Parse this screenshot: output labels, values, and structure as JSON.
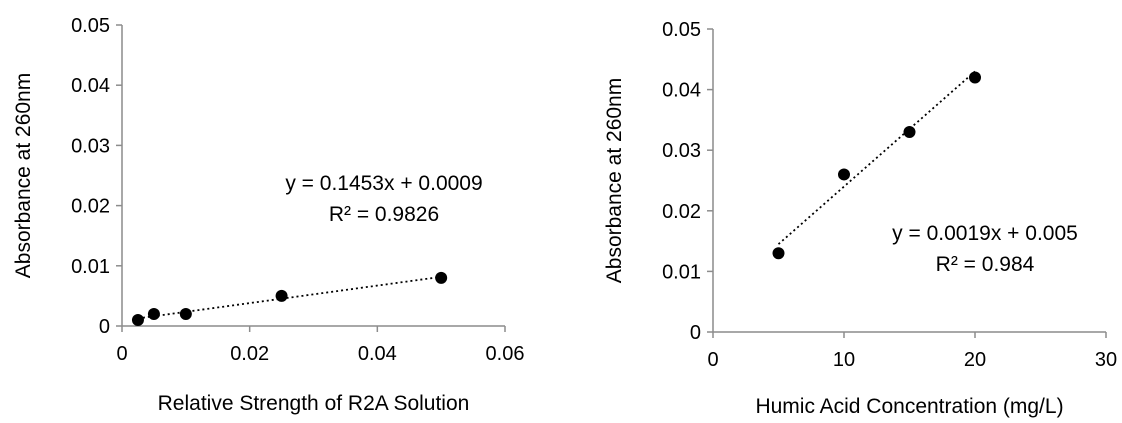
{
  "colors": {
    "axis": "#8c8c8c",
    "point": "#000000",
    "trend": "#000000",
    "background": "#ffffff"
  },
  "chart_data": [
    {
      "type": "scatter",
      "xlabel": "Relative Strength of R2A Solution",
      "ylabel": "Absorbance at 260nm",
      "xlim": [
        0,
        0.06
      ],
      "ylim": [
        0,
        0.05
      ],
      "xticks": [
        "0",
        "0.02",
        "0.04",
        "0.06"
      ],
      "xtick_values": [
        0,
        0.02,
        0.04,
        0.06
      ],
      "yticks": [
        "0",
        "0.01",
        "0.02",
        "0.03",
        "0.04",
        "0.05"
      ],
      "ytick_values": [
        0,
        0.01,
        0.02,
        0.03,
        0.04,
        0.05
      ],
      "series": [
        {
          "x": [
            0.0025,
            0.005,
            0.01,
            0.025,
            0.05
          ],
          "y": [
            0.001,
            0.002,
            0.002,
            0.005,
            0.008
          ],
          "trendline": {
            "kind": "linear",
            "slope": 0.1453,
            "intercept": 0.0009,
            "style": "dotted"
          }
        }
      ],
      "annotations": [
        "y = 0.1453x + 0.0009",
        "R² = 0.9826"
      ],
      "grid": false
    },
    {
      "type": "scatter",
      "xlabel": "Humic Acid Concentration (mg/L)",
      "ylabel": "Absorbance at 260nm",
      "xlim": [
        0,
        30
      ],
      "ylim": [
        0,
        0.05
      ],
      "xticks": [
        "0",
        "10",
        "20",
        "30"
      ],
      "xtick_values": [
        0,
        10,
        20,
        30
      ],
      "yticks": [
        "0",
        "0.01",
        "0.02",
        "0.03",
        "0.04",
        "0.05"
      ],
      "ytick_values": [
        0,
        0.01,
        0.02,
        0.03,
        0.04,
        0.05
      ],
      "series": [
        {
          "x": [
            5,
            10,
            15,
            20
          ],
          "y": [
            0.013,
            0.026,
            0.033,
            0.042
          ],
          "trendline": {
            "kind": "linear",
            "slope": 0.0019,
            "intercept": 0.005,
            "style": "dotted"
          }
        }
      ],
      "annotations": [
        "y = 0.0019x + 0.005",
        "R² = 0.984"
      ],
      "grid": false
    }
  ]
}
